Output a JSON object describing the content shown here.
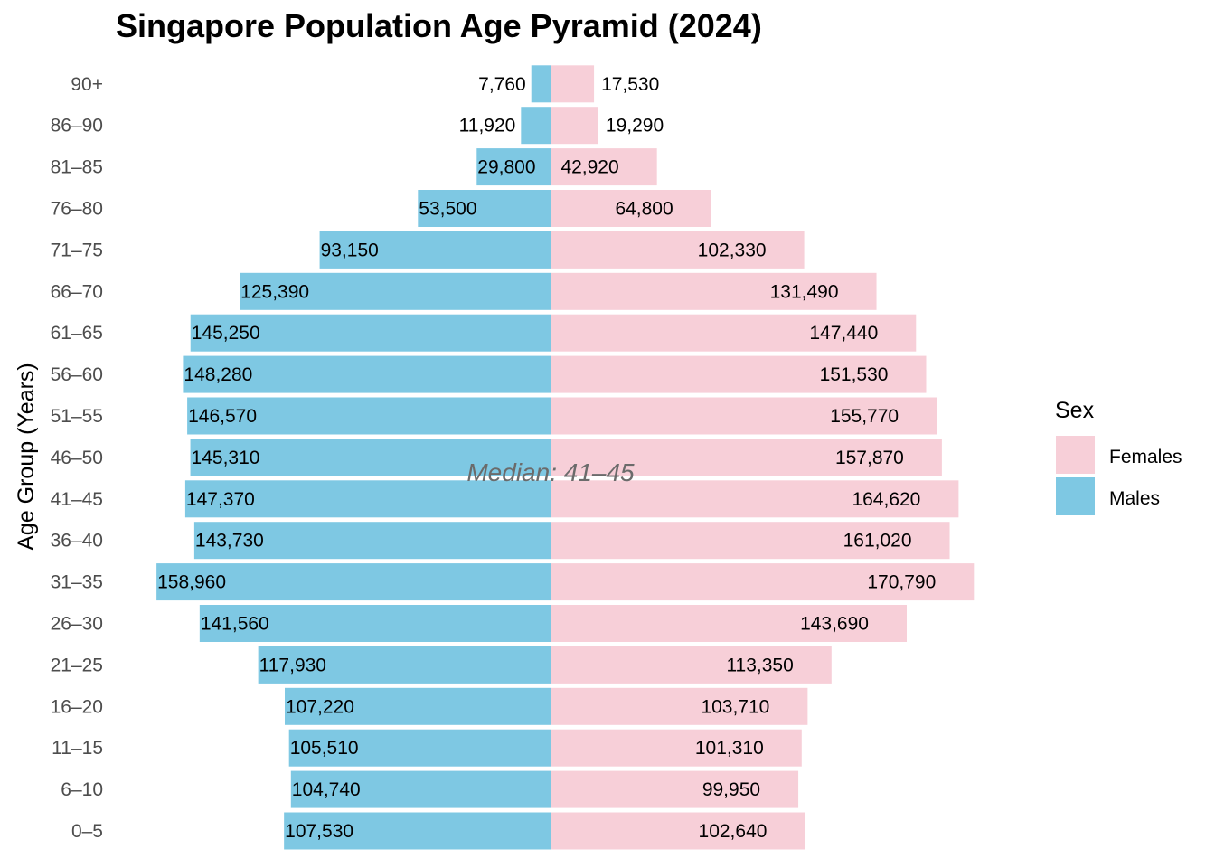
{
  "chart_data": {
    "type": "bar",
    "orientation": "horizontal",
    "layout": "population-pyramid",
    "title": "Singapore Population Age Pyramid (2024)",
    "ylabel": "Age Group (Years)",
    "xlabel": "",
    "categories": [
      "0–5",
      "6–10",
      "11–15",
      "16–20",
      "21–25",
      "26–30",
      "31–35",
      "36–40",
      "41–45",
      "46–50",
      "51–55",
      "56–60",
      "61–65",
      "66–70",
      "71–75",
      "76–80",
      "81–85",
      "86–90",
      "90+"
    ],
    "series": [
      {
        "name": "Males",
        "color": "#7ec8e3",
        "direction": "left",
        "values": [
          107530,
          104740,
          105510,
          107220,
          117930,
          141560,
          158960,
          143730,
          147370,
          145310,
          146570,
          148280,
          145250,
          125390,
          93150,
          53500,
          29800,
          11920,
          7760
        ],
        "labels": [
          "107,530",
          "104,740",
          "105,510",
          "107,220",
          "117,930",
          "141,560",
          "158,960",
          "143,730",
          "147,370",
          "145,310",
          "146,570",
          "148,280",
          "145,250",
          "125,390",
          "93,150",
          "53,500",
          "29,800",
          "11,920",
          "7,760"
        ]
      },
      {
        "name": "Females",
        "color": "#f7cfd8",
        "direction": "right",
        "values": [
          102640,
          99950,
          101310,
          103710,
          113350,
          143690,
          170790,
          161020,
          164620,
          157870,
          155770,
          151530,
          147440,
          131490,
          102330,
          64800,
          42920,
          19290,
          17530
        ],
        "labels": [
          "102,640",
          "99,950",
          "101,310",
          "103,710",
          "113,350",
          "143,690",
          "170,790",
          "161,020",
          "164,620",
          "157,870",
          "155,770",
          "151,530",
          "147,440",
          "131,490",
          "102,330",
          "64,800",
          "42,920",
          "19,290",
          "17,530"
        ]
      }
    ],
    "annotation": "Median: 41–45",
    "grid": false,
    "legend": {
      "title": "Sex",
      "position": "right",
      "entries": [
        {
          "name": "Females",
          "color": "#f7cfd8"
        },
        {
          "name": "Males",
          "color": "#7ec8e3"
        }
      ]
    }
  }
}
